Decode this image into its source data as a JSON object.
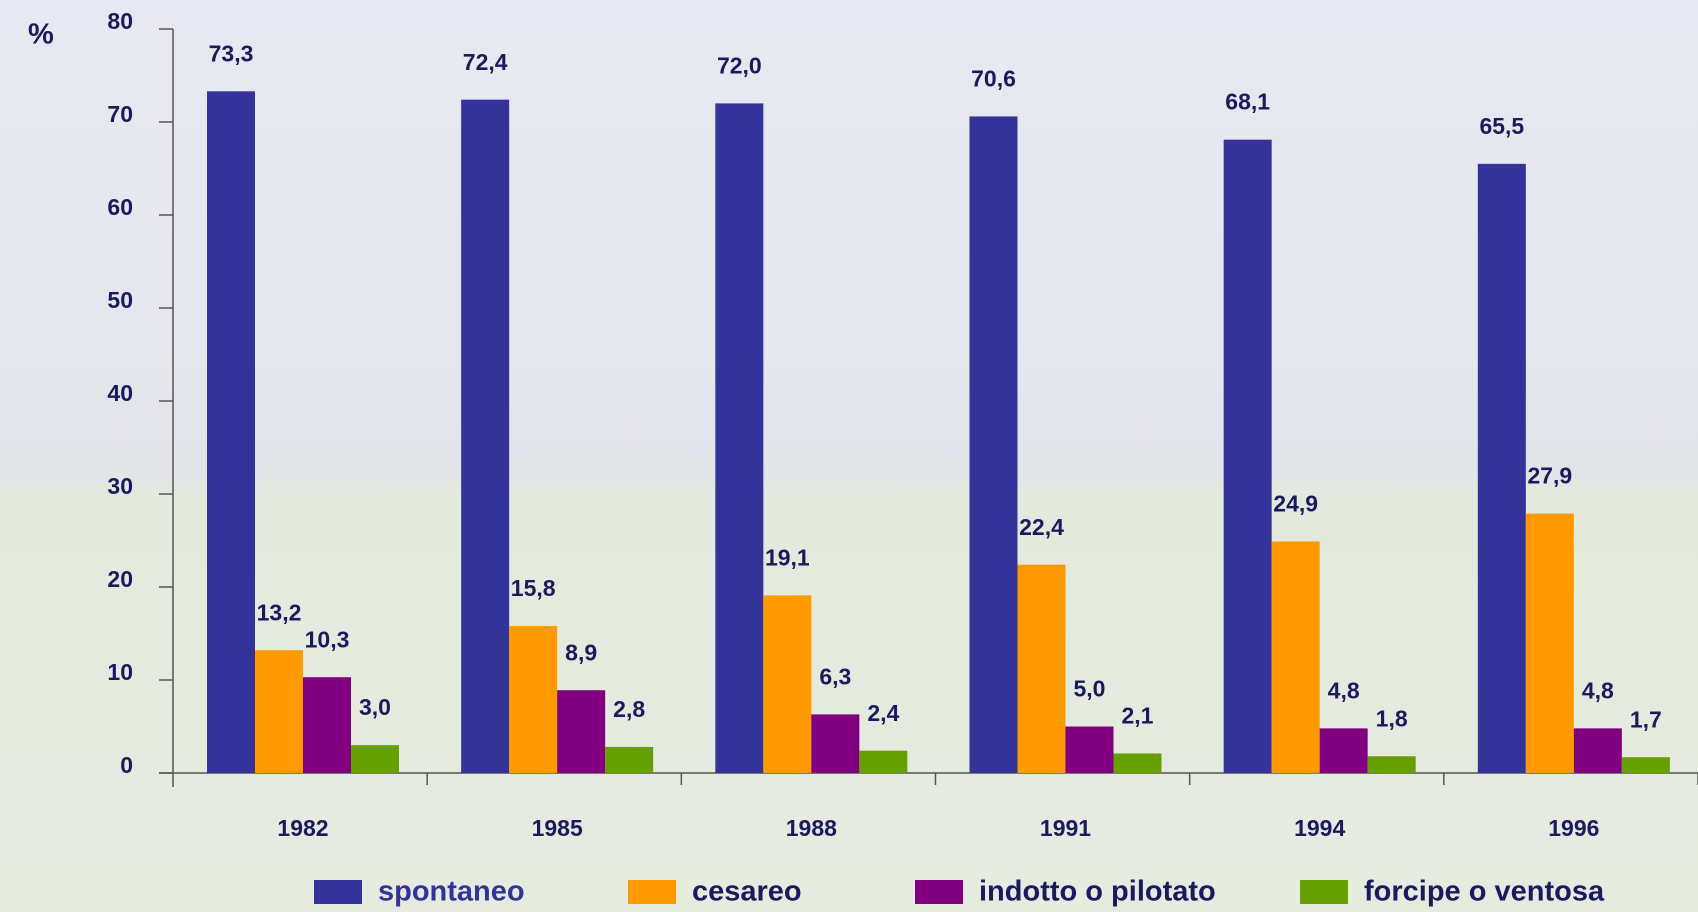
{
  "chart_data": {
    "type": "bar",
    "ylabel": "%",
    "categories": [
      "1982",
      "1985",
      "1988",
      "1991",
      "1994",
      "1996"
    ],
    "series": [
      {
        "name": "spontaneo",
        "color": "#333399",
        "values": [
          73.3,
          72.4,
          72.0,
          70.6,
          68.1,
          65.5
        ],
        "value_labels": [
          "73,3",
          "72,4",
          "72,0",
          "70,6",
          "68,1",
          "65,5"
        ]
      },
      {
        "name": "cesareo",
        "color": "#ff9900",
        "values": [
          13.2,
          15.8,
          19.1,
          22.4,
          24.9,
          27.9
        ],
        "value_labels": [
          "13,2",
          "15,8",
          "19,1",
          "22,4",
          "24,9",
          "27,9"
        ]
      },
      {
        "name": "indotto o pilotato",
        "color": "#800080",
        "values": [
          10.3,
          8.9,
          6.3,
          5.0,
          4.8,
          4.8
        ],
        "value_labels": [
          "10,3",
          "8,9",
          "6,3",
          "5,0",
          "4,8",
          "4,8"
        ]
      },
      {
        "name": "forcipe o ventosa",
        "color": "#66a000",
        "values": [
          3.0,
          2.8,
          2.4,
          2.1,
          1.8,
          1.7
        ],
        "value_labels": [
          "3,0",
          "2,8",
          "2,4",
          "2,1",
          "1,8",
          "1,7"
        ]
      }
    ],
    "ylim": [
      0,
      80
    ],
    "yticks": [
      0,
      10,
      20,
      30,
      40,
      50,
      60,
      70,
      80
    ],
    "legend": "bottom"
  }
}
